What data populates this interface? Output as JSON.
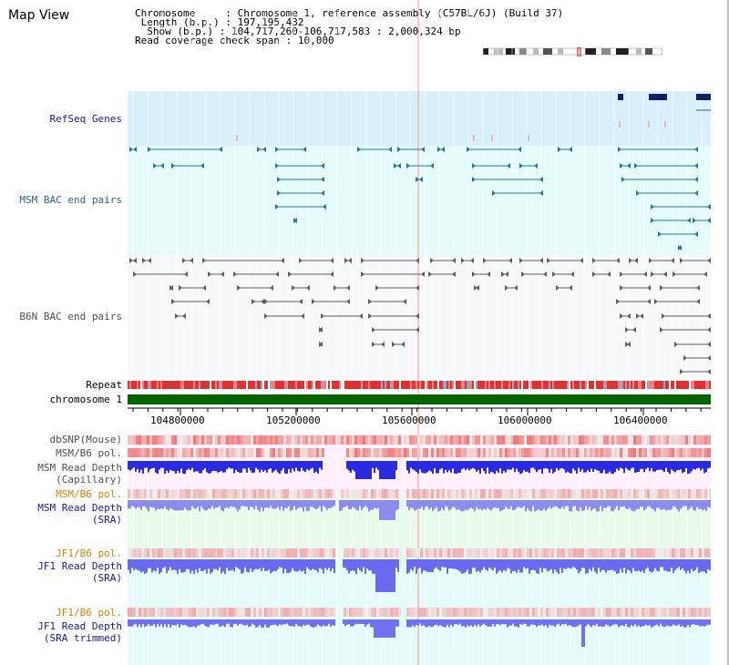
{
  "title": "Map View",
  "info": {
    "chromosome_label": "Chromosome",
    "chromosome_value": "Chromosome 1, reference assembly (C57BL/6J) (Build 37)",
    "length_label": "Length (b.p.)",
    "length_value": "197,195,432",
    "show_label": "Show (b.p.)",
    "show_value": "104,717,260-106,717,583 : 2,000,324 bp",
    "coverage_label": "Read coverage check span",
    "coverage_value": "10,000"
  },
  "tracks": {
    "refseq": "RefSeq Genes",
    "msm_bac": "MSM BAC end pairs",
    "b6n_bac": "B6N BAC end pairs",
    "repeat": "Repeat",
    "chromosome": "chromosome 1",
    "dbsnp": "dbSNP(Mouse)",
    "msm_b6_pol_1": "MSM/B6 pol.",
    "msm_read_cap_1": "MSM Read Depth",
    "msm_read_cap_2": "(Capillary)",
    "msm_b6_pol_2": "MSM/B6 pol.",
    "msm_read_sra_1": "MSM Read Depth",
    "msm_read_sra_2": "(SRA)",
    "jf1_b6_pol_1": "JF1/B6 pol.",
    "jf1_read_sra_1": "JF1 Read Depth",
    "jf1_read_sra_2": "(SRA)",
    "jf1_b6_pol_2": "JF1/B6 pol.",
    "jf1_read_trim_1": "JF1 Read Depth",
    "jf1_read_trim_2": "(SRA trimmed)"
  },
  "axis": {
    "ticks": [
      "104800000",
      "105200000",
      "105600000",
      "106000000",
      "106400000"
    ]
  },
  "colors": {
    "refseq_bg": "#d8f0fa",
    "bac_bg": "#e4fbfa",
    "chrom_bar": "#006400",
    "read_blue": "#2020e0",
    "read_light": "#8888f0",
    "pol_red": "#f03030"
  }
}
